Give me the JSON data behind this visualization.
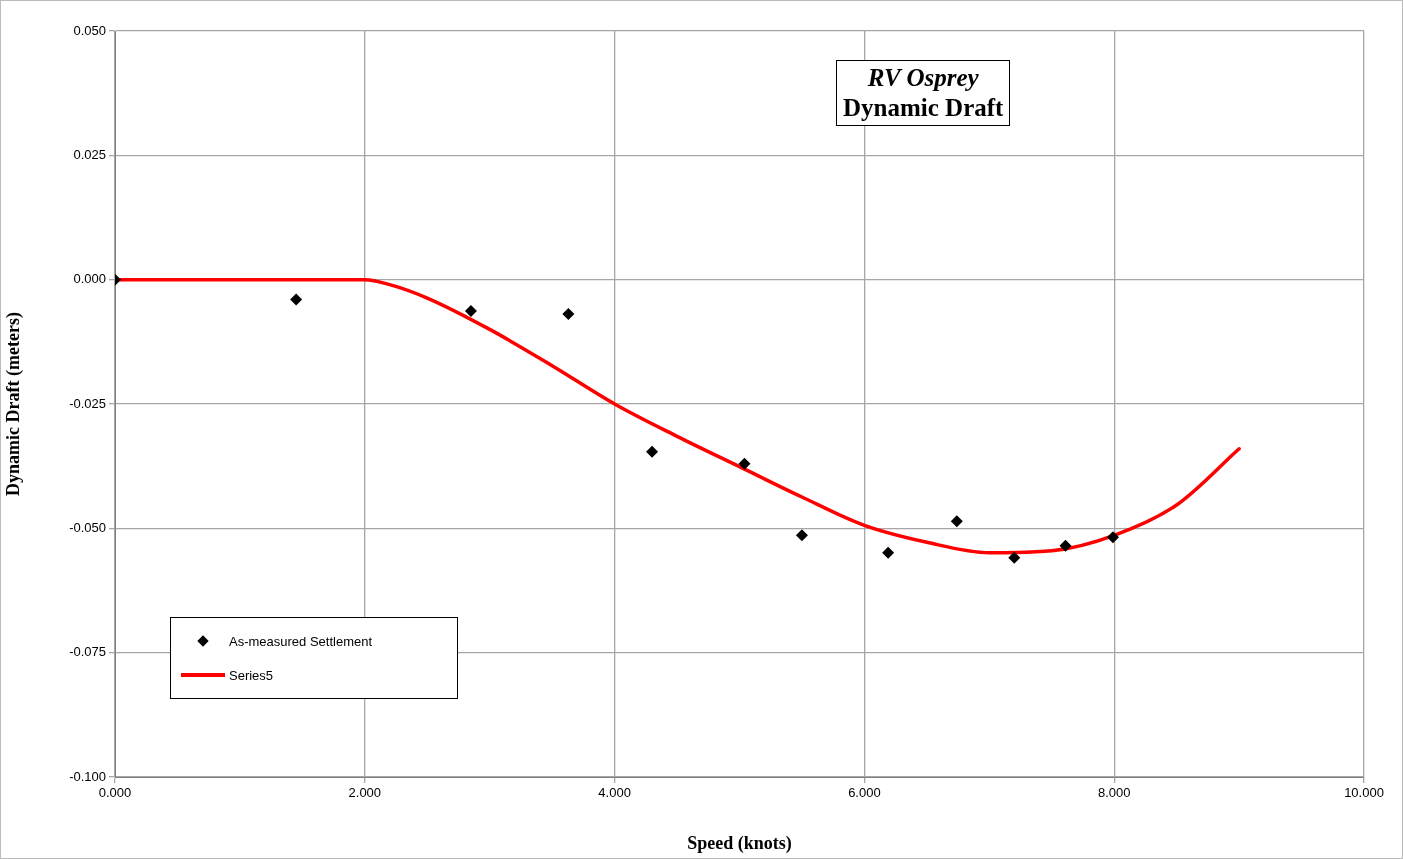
{
  "chart_data": {
    "type": "scatter",
    "title": "RV Osprey",
    "subtitle": "Dynamic Draft",
    "xlabel": "Speed (knots)",
    "ylabel": "Dynamic Draft (meters)",
    "xlim": [
      0,
      10
    ],
    "ylim": [
      -0.1,
      0.05
    ],
    "xticks": [
      {
        "value": 0,
        "label": "0.000"
      },
      {
        "value": 2,
        "label": "2.000"
      },
      {
        "value": 4,
        "label": "4.000"
      },
      {
        "value": 6,
        "label": "6.000"
      },
      {
        "value": 8,
        "label": "8.000"
      },
      {
        "value": 10,
        "label": "10.000"
      }
    ],
    "yticks": [
      {
        "value": -0.1,
        "label": "-0.100"
      },
      {
        "value": -0.075,
        "label": "-0.075"
      },
      {
        "value": -0.05,
        "label": "-0.050"
      },
      {
        "value": -0.025,
        "label": "-0.025"
      },
      {
        "value": 0,
        "label": "0.000"
      },
      {
        "value": 0.025,
        "label": "0.025"
      },
      {
        "value": 0.05,
        "label": "0.050"
      }
    ],
    "grid": true,
    "legend": "bottom left",
    "series": [
      {
        "name": "As-measured Settlement",
        "type": "scatter",
        "marker": "diamond",
        "color": "#000000",
        "x": [
          0,
          1.45,
          2.85,
          3.63,
          4.3,
          5.04,
          5.5,
          6.19,
          6.74,
          7.2,
          7.61,
          7.99
        ],
        "values": [
          0,
          -0.004,
          -0.0063,
          -0.0069,
          -0.0346,
          -0.037,
          -0.0514,
          -0.0549,
          -0.0486,
          -0.0559,
          -0.0535,
          -0.0518
        ]
      },
      {
        "name": "Series5",
        "type": "line",
        "marker": "none",
        "line_style": "solid",
        "color": "#ff0000",
        "x": [
          0,
          1,
          2,
          2.2,
          2.5,
          3,
          3.5,
          4,
          4.5,
          5,
          5.5,
          6,
          6.5,
          7,
          7.5,
          8,
          8.5,
          9
        ],
        "values": [
          0,
          0,
          0,
          -0.001,
          -0.0037,
          -0.01,
          -0.0173,
          -0.025,
          -0.0315,
          -0.0376,
          -0.0437,
          -0.0494,
          -0.0528,
          -0.0549,
          -0.0545,
          -0.0514,
          -0.0453,
          -0.034
        ]
      }
    ]
  }
}
